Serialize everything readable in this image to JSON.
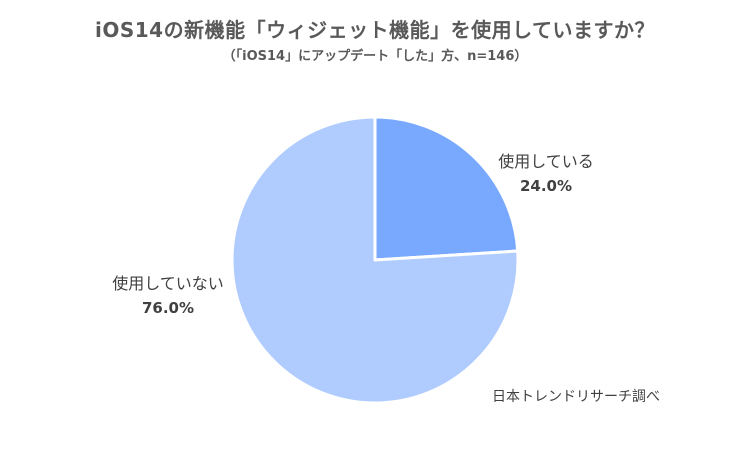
{
  "chart_data": {
    "type": "pie",
    "title": "iOS14の新機能「ウィジェット機能」を使用していますか？",
    "subtitle": "（「iOS14」にアップデート「した」方、n=146）",
    "slices": [
      {
        "label": "使用している",
        "value": 24.0,
        "display": "24.0%",
        "color": "#78A9FF"
      },
      {
        "label": "使用していない",
        "value": 76.0,
        "display": "76.0%",
        "color": "#B0CCFF"
      }
    ],
    "start_angle_deg": 0,
    "direction": "clockwise",
    "legend": "none"
  },
  "source": "日本トレンドリサーチ調べ",
  "colors": {
    "border": "#ffffff"
  }
}
